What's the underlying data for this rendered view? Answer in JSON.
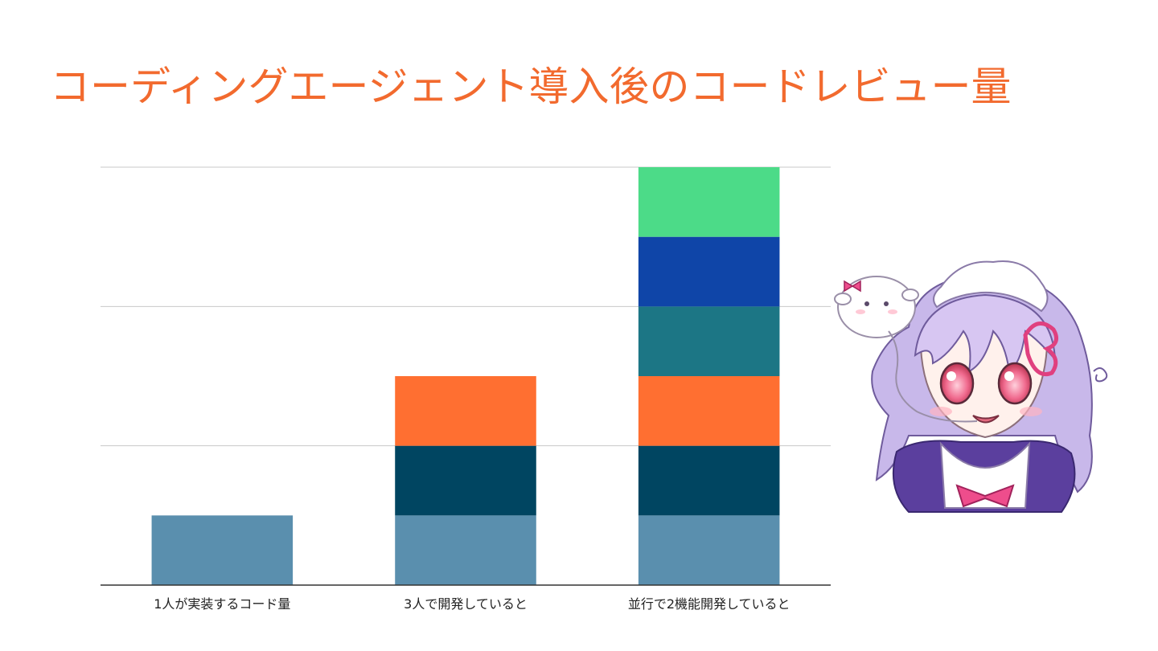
{
  "slide": {
    "title": "コーディングエージェント導入後のコードレビュー量",
    "title_color": "#F26A2E"
  },
  "chart_data": {
    "type": "bar",
    "stacked": true,
    "categories": [
      "1人が実装するコード量",
      "3人で開発していると",
      "並行で2機能開発していると"
    ],
    "series": [
      {
        "name": "segment-1",
        "color": "#5A8FAE",
        "values": [
          1,
          1,
          1
        ]
      },
      {
        "name": "segment-2",
        "color": "#004561",
        "values": [
          0,
          1,
          1
        ]
      },
      {
        "name": "segment-3",
        "color": "#FF6F31",
        "values": [
          0,
          1,
          1
        ]
      },
      {
        "name": "segment-4",
        "color": "#1C7685",
        "values": [
          0,
          0,
          1
        ]
      },
      {
        "name": "segment-5",
        "color": "#0F45A8",
        "values": [
          0,
          0,
          1
        ]
      },
      {
        "name": "segment-6",
        "color": "#4CDB88",
        "values": [
          0,
          0,
          1
        ]
      }
    ],
    "ylim": [
      0,
      6
    ],
    "gridlines": [
      2,
      4,
      6
    ],
    "grid": true,
    "legend": "none",
    "title": "",
    "xlabel": "",
    "ylabel": ""
  },
  "illustration": {
    "subject": "chibi-maid-character-with-sheep"
  }
}
